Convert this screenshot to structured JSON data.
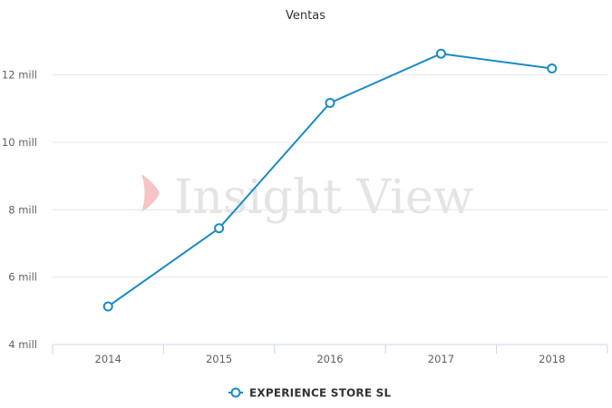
{
  "chart_data": {
    "type": "line",
    "title": "Ventas",
    "categories": [
      "2014",
      "2015",
      "2016",
      "2017",
      "2018"
    ],
    "series": [
      {
        "name": "EXPERIENCE STORE SL",
        "values": [
          5.13,
          7.45,
          11.17,
          12.63,
          12.19
        ],
        "color": "#1a8bc4"
      }
    ],
    "ylim": [
      4,
      13.2
    ],
    "yticks": [
      4,
      6,
      8,
      10,
      12
    ],
    "ytick_labels": [
      "4 mill",
      "6 mill",
      "8 mill",
      "10 mill",
      "12 mill"
    ],
    "grid": true,
    "legend": "bottom-center"
  },
  "watermark": {
    "text": "Insight View",
    "icon": "chevron-logo-icon",
    "color": "#f6c4c4"
  }
}
